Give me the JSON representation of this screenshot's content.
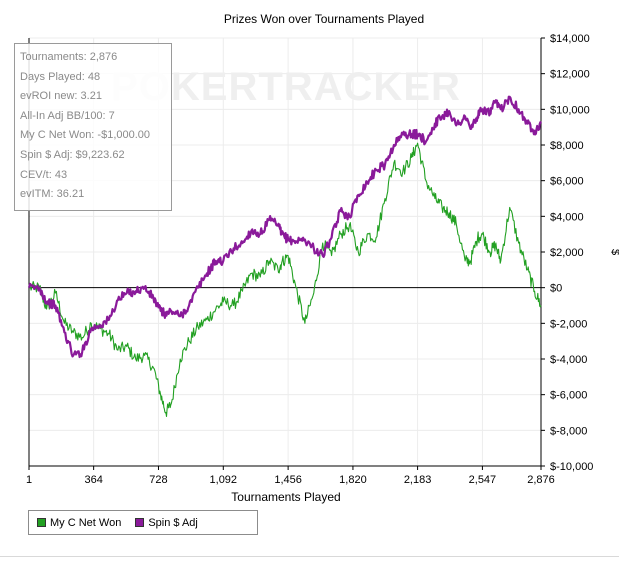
{
  "chart_data": {
    "type": "line",
    "title": "Prizes Won over Tournaments Played",
    "xlabel": "Tournaments Played",
    "ylabel": "$",
    "xlim": [
      1,
      2876
    ],
    "ylim": [
      -10000,
      14000
    ],
    "xticks": [
      1,
      364,
      728,
      1092,
      1456,
      1820,
      2183,
      2547,
      2876
    ],
    "xtick_labels": [
      "1",
      "364",
      "728",
      "1,092",
      "1,456",
      "1,820",
      "2,183",
      "2,547",
      "2,876"
    ],
    "yticks": [
      14000,
      12000,
      10000,
      8000,
      6000,
      4000,
      2000,
      0,
      -2000,
      -4000,
      -6000,
      -8000,
      -10000
    ],
    "ytick_labels": [
      "$14,000",
      "$12,000",
      "$10,000",
      "$8,000",
      "$6,000",
      "$4,000",
      "$2,000",
      "$0",
      "$-2,000",
      "$-4,000",
      "$-6,000",
      "$-8,000",
      "$-10,000"
    ],
    "grid": true,
    "legend_position": "bottom-left",
    "series": [
      {
        "name": "My C Net Won",
        "color": "#22a022",
        "x": [
          1,
          60,
          100,
          150,
          200,
          250,
          300,
          350,
          400,
          450,
          500,
          550,
          600,
          650,
          700,
          740,
          770,
          800,
          850,
          900,
          950,
          1000,
          1050,
          1092,
          1150,
          1200,
          1250,
          1300,
          1350,
          1400,
          1420,
          1456,
          1500,
          1550,
          1600,
          1650,
          1700,
          1750,
          1800,
          1850,
          1900,
          1950,
          2000,
          2050,
          2100,
          2150,
          2183,
          2230,
          2280,
          2320,
          2360,
          2400,
          2450,
          2480,
          2520,
          2547,
          2590,
          2620,
          2650,
          2700,
          2750,
          2800,
          2840,
          2876
        ],
        "y": [
          0,
          0,
          -1200,
          -300,
          -2000,
          -2500,
          -2800,
          -2000,
          -2300,
          -2600,
          -3500,
          -3300,
          -4000,
          -3800,
          -4500,
          -6000,
          -7000,
          -6500,
          -4000,
          -3000,
          -2200,
          -1800,
          -1200,
          -800,
          -1000,
          -200,
          800,
          600,
          1500,
          1000,
          1400,
          1800,
          0,
          -2000,
          -300,
          2500,
          1800,
          3000,
          3500,
          2000,
          3000,
          2800,
          5000,
          7000,
          6500,
          7300,
          8100,
          6000,
          5000,
          4500,
          4200,
          3600,
          1500,
          1500,
          2800,
          3000,
          2000,
          2400,
          1500,
          4500,
          2500,
          1000,
          -200,
          -1000
        ]
      },
      {
        "name": "Spin $ Adj",
        "color": "#8a1a9a",
        "x": [
          1,
          60,
          100,
          150,
          200,
          250,
          300,
          350,
          400,
          450,
          500,
          550,
          600,
          650,
          700,
          740,
          770,
          800,
          850,
          900,
          950,
          1000,
          1050,
          1092,
          1150,
          1200,
          1250,
          1300,
          1350,
          1400,
          1420,
          1456,
          1500,
          1550,
          1600,
          1650,
          1700,
          1750,
          1800,
          1850,
          1900,
          1950,
          2000,
          2050,
          2100,
          2150,
          2183,
          2230,
          2280,
          2320,
          2360,
          2400,
          2450,
          2480,
          2520,
          2547,
          2590,
          2620,
          2650,
          2700,
          2750,
          2800,
          2840,
          2876
        ],
        "y": [
          0,
          0,
          -800,
          -1000,
          -2500,
          -3800,
          -3600,
          -2300,
          -2100,
          -1800,
          -700,
          -300,
          -200,
          0,
          -600,
          -1300,
          -1500,
          -1300,
          -1600,
          -1000,
          0,
          800,
          1500,
          1500,
          2200,
          2500,
          3200,
          3000,
          3800,
          3500,
          3000,
          2700,
          2600,
          2700,
          2200,
          1800,
          2800,
          4300,
          4000,
          5200,
          5900,
          6600,
          6900,
          8000,
          8600,
          8600,
          8600,
          8200,
          9200,
          9600,
          9900,
          9100,
          9600,
          8900,
          9600,
          10000,
          9800,
          10400,
          10000,
          10700,
          10000,
          9200,
          8800,
          9200
        ]
      }
    ]
  },
  "stats": [
    "Tournaments: 2,876",
    "Days Played: 48",
    "evROI new: 3.21",
    "All-In Adj BB/100: 7",
    "My C Net Won: -$1,000.00",
    "Spin $ Adj: $9,223.62",
    "CEV/t: 43",
    "evITM: 36.21"
  ],
  "watermark": "POKERTRACKER",
  "legend": [
    {
      "label": "My C Net Won",
      "color": "#22a022"
    },
    {
      "label": "Spin $ Adj",
      "color": "#8a1a9a"
    }
  ]
}
